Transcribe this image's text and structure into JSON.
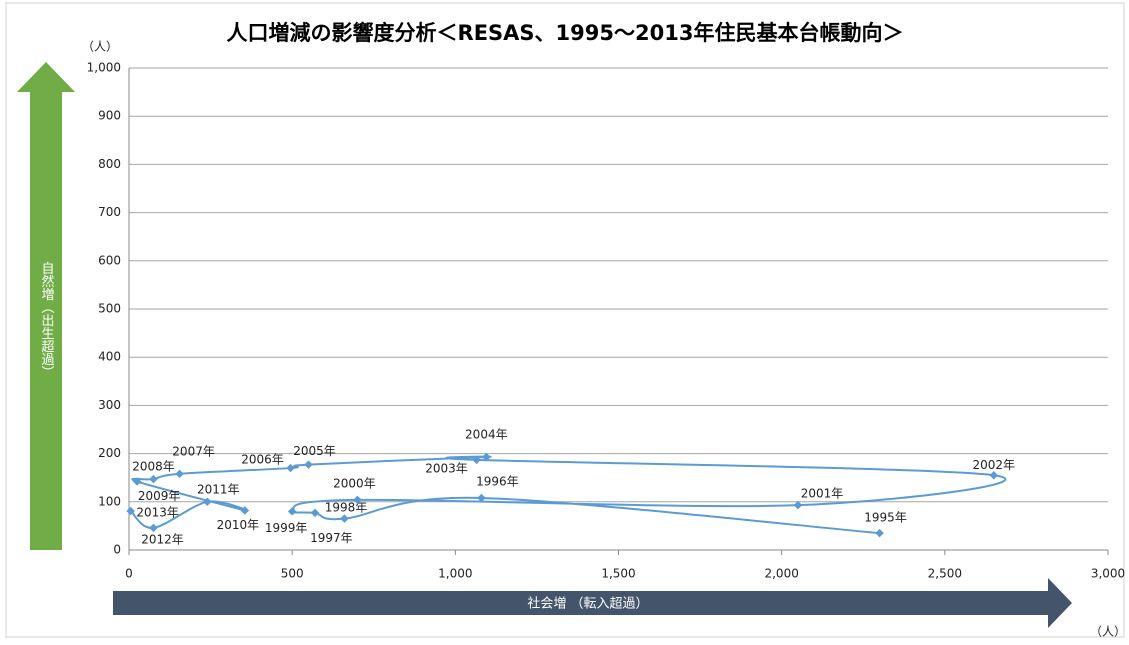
{
  "chart_data": {
    "type": "scatter",
    "title": "人口増減の影響度分析＜RESAS、1995〜2013年住民基本台帳動向＞",
    "x_label": "社会増 （転入超過）",
    "y_label": "自然増（出生超過）",
    "x_unit": "（人）",
    "y_unit": "（人）",
    "xlim": [
      0,
      3000
    ],
    "ylim": [
      0,
      1000
    ],
    "xticks": [
      0,
      500,
      {
        "value": 1000,
        "label": "1,000"
      },
      {
        "value": 1500,
        "label": "1,500"
      },
      {
        "value": 2000,
        "label": "2,000"
      },
      {
        "value": 2500,
        "label": "2,500"
      },
      {
        "value": 3000,
        "label": "3,000"
      }
    ],
    "yticks": [
      0,
      100,
      200,
      300,
      400,
      500,
      600,
      700,
      800,
      900,
      {
        "value": 1000,
        "label": "1,000"
      }
    ],
    "grid": true,
    "series": [
      {
        "color": "#5b9bd5",
        "x": [
          2300,
          1080,
          660,
          570,
          500,
          700,
          2050,
          2650,
          1065,
          1095,
          550,
          495,
          155,
          75,
          25,
          355,
          240,
          75,
          5
        ],
        "values": [
          35,
          108,
          65,
          77,
          80,
          104,
          93,
          155,
          187,
          193,
          177,
          170,
          158,
          147,
          142,
          82,
          100,
          46,
          81
        ],
        "point_labels": [
          "1995年",
          "1996年",
          "1997年",
          "1998年",
          "1999年",
          "2000年",
          "2001年",
          "2002年",
          "2003年",
          "2004年",
          "2005年",
          "2006年",
          "2007年",
          "2008年",
          "2009年",
          "2010年",
          "2011年",
          "2012年",
          "2013年"
        ]
      }
    ]
  }
}
